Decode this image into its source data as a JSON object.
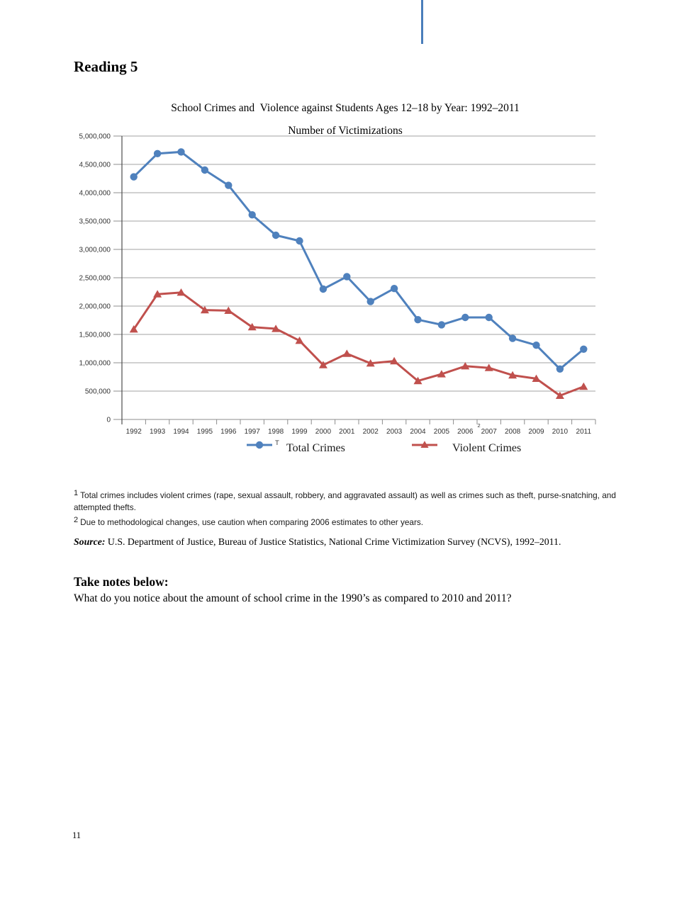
{
  "page": {
    "heading": "Reading 5",
    "page_number": "11"
  },
  "chart": {
    "title": "School Crimes and  Violence against Students Ages 12–18 by Year: 1992–2011",
    "subtitle": "Number of Victimizations",
    "legend": {
      "total_label": "Total Crimes",
      "total_remnant": "T",
      "violent_label": "Violent Crimes"
    }
  },
  "chart_data": {
    "type": "line",
    "title": "School Crimes and  Violence against Students Ages 12–18 by Year: 1992–2011",
    "subtitle": "Number of Victimizations",
    "categories": [
      "1992",
      "1993",
      "1994",
      "1995",
      "1996",
      "1997",
      "1998",
      "1999",
      "2000",
      "2001",
      "2002",
      "2003",
      "2004",
      "2005",
      "2006",
      "2007",
      "2008",
      "2009",
      "2010",
      "2011"
    ],
    "series": [
      {
        "name": "Total Crimes",
        "color": "#4f81bd",
        "marker": "circle",
        "values": [
          4280000,
          4690000,
          4720000,
          4400000,
          4130000,
          3610000,
          3250000,
          3150000,
          2300000,
          2520000,
          2080000,
          2310000,
          1760000,
          1670000,
          1800000,
          1800000,
          1430000,
          1310000,
          890000,
          1240000
        ]
      },
      {
        "name": "Violent Crimes",
        "color": "#c0504d",
        "marker": "triangle",
        "values": [
          1590000,
          2210000,
          2240000,
          1930000,
          1920000,
          1630000,
          1600000,
          1390000,
          960000,
          1160000,
          990000,
          1030000,
          680000,
          800000,
          940000,
          910000,
          780000,
          720000,
          420000,
          580000
        ]
      }
    ],
    "ylim": [
      0,
      5000000
    ],
    "ytick_step": 500000,
    "ytick_labels": [
      "0",
      "500,000",
      "1,000,000",
      "1,500,000",
      "2,000,000",
      "2,500,000",
      "3,000,000",
      "3,500,000",
      "4,000,000",
      "4,500,000",
      "5,000,000"
    ],
    "grid": true,
    "legend_position": "bottom",
    "x_footnote_marker": {
      "category": "2007",
      "text": "2"
    }
  },
  "colors": {
    "total": "#4f81bd",
    "violent": "#c0504d",
    "gridline": "#a3a3a3",
    "zero_line": "#8c8c8c",
    "tick": "#8c8c8c",
    "axis": "#4d4d4d",
    "top_rule": "#4a7ebb"
  },
  "footnotes": [
    {
      "marker": "1",
      "text": "Total crimes includes violent crimes (rape, sexual assault, robbery, and aggravated assault) as well as crimes such as theft, purse-snatching, and attempted thefts."
    },
    {
      "marker": "2",
      "text": "Due to methodological changes, use caution when comparing 2006 estimates to other years."
    }
  ],
  "source": {
    "label": "Source:",
    "text": " U.S. Department of Justice, Bureau of Justice Statistics, National Crime Victimization Survey (NCVS), 1992–2011."
  },
  "notes": {
    "heading": "Take notes below:",
    "question": "What do you notice about the amount of school crime in the 1990’s as compared to 2010 and 2011?"
  }
}
